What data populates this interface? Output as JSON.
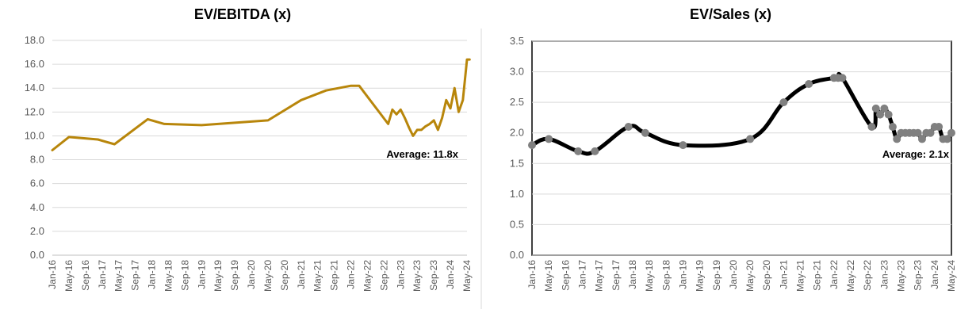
{
  "colors": {
    "ev_ebitda_line": "#B8860B",
    "ev_sales_line": "#000000",
    "ev_sales_marker": "#808080",
    "grid": "#d9d9d9",
    "axis_text": "#595959"
  },
  "chart_data": [
    {
      "type": "line",
      "title": "EV/EBITDA (x)",
      "xlabel": "",
      "ylabel": "",
      "ylim": [
        0,
        18
      ],
      "y_ticks": [
        "0.0",
        "2.0",
        "4.0",
        "6.0",
        "8.0",
        "10.0",
        "12.0",
        "14.0",
        "16.0",
        "18.0"
      ],
      "x_tick_labels": [
        "Jan-16",
        "May-16",
        "Sep-16",
        "Jan-17",
        "May-17",
        "Sep-17",
        "Jan-18",
        "May-18",
        "Sep-18",
        "Jan-19",
        "May-19",
        "Sep-19",
        "Jan-20",
        "May-20",
        "Sep-20",
        "Jan-21",
        "May-21",
        "Sep-21",
        "Jan-22",
        "May-22",
        "Sep-22",
        "Jan-23",
        "May-23",
        "Sep-23",
        "Jan-24",
        "May-24"
      ],
      "grid": "horizontal",
      "annotation": "Average: 11.8x",
      "series": [
        {
          "x": [
            "2016-01",
            "2016-05",
            "2016-12",
            "2017-04",
            "2017-12",
            "2018-04",
            "2019-01",
            "2020-05",
            "2021-01",
            "2021-07",
            "2022-01",
            "2022-03",
            "2022-10",
            "2022-11",
            "2022-12",
            "2023-01",
            "2023-02",
            "2023-03",
            "2023-04",
            "2023-05",
            "2023-06",
            "2023-07",
            "2023-08",
            "2023-09",
            "2023-10",
            "2023-11",
            "2023-12",
            "2024-01",
            "2024-02",
            "2024-03",
            "2024-04",
            "2024-05",
            "2024-05-20"
          ],
          "values": [
            8.8,
            9.9,
            9.7,
            9.3,
            11.4,
            11.0,
            10.9,
            11.3,
            13.0,
            13.8,
            14.2,
            14.2,
            11.0,
            12.2,
            11.8,
            12.2,
            11.5,
            10.7,
            10.0,
            10.5,
            10.5,
            10.8,
            11.0,
            11.3,
            10.5,
            11.5,
            13.0,
            12.3,
            14.0,
            12.0,
            13.0,
            16.4,
            16.4
          ]
        }
      ]
    },
    {
      "type": "line",
      "title": "EV/Sales (x)",
      "xlabel": "",
      "ylabel": "",
      "ylim": [
        0,
        3.5
      ],
      "y_ticks": [
        "0.0",
        "0.5",
        "1.0",
        "1.5",
        "2.0",
        "2.5",
        "3.0",
        "3.5"
      ],
      "x_tick_labels": [
        "Jan-16",
        "May-16",
        "Sep-16",
        "Jan-17",
        "May-17",
        "Sep-17",
        "Jan-18",
        "May-18",
        "Sep-18",
        "Jan-19",
        "May-19",
        "Sep-19",
        "Jan-20",
        "May-20",
        "Sep-20",
        "Jan-21",
        "May-21",
        "Sep-21",
        "Jan-22",
        "May-22",
        "Sep-22",
        "Jan-23",
        "May-23",
        "Sep-23",
        "Jan-24",
        "May-24"
      ],
      "grid": "horizontal",
      "annotation": "Average: 2.1x",
      "series": [
        {
          "x": [
            "2016-01",
            "2016-05",
            "2016-12",
            "2017-04",
            "2017-12",
            "2018-04",
            "2019-01",
            "2020-05",
            "2021-01",
            "2021-07",
            "2022-01",
            "2022-02",
            "2022-03",
            "2022-10",
            "2022-11",
            "2022-12",
            "2023-01",
            "2023-02",
            "2023-03",
            "2023-04",
            "2023-05",
            "2023-06",
            "2023-07",
            "2023-08",
            "2023-09",
            "2023-10",
            "2023-11",
            "2023-12",
            "2024-01",
            "2024-02",
            "2024-03",
            "2024-04",
            "2024-05"
          ],
          "values": [
            1.8,
            1.9,
            1.7,
            1.7,
            2.1,
            2.0,
            1.8,
            1.9,
            2.5,
            2.8,
            2.9,
            2.9,
            2.9,
            2.1,
            2.4,
            2.3,
            2.4,
            2.3,
            2.1,
            1.9,
            2.0,
            2.0,
            2.0,
            2.0,
            2.0,
            1.9,
            2.0,
            2.0,
            2.1,
            2.1,
            1.9,
            1.9,
            2.0
          ]
        }
      ]
    }
  ]
}
